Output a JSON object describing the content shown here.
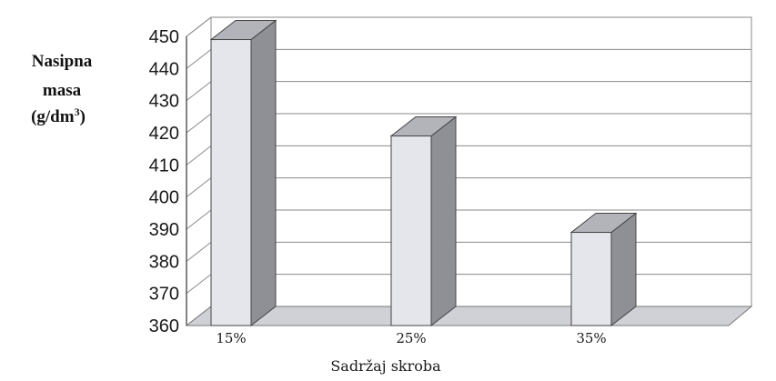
{
  "chart_data": {
    "type": "bar",
    "ylabel_lines": [
      "Nasipna",
      "masa",
      "(g/dm"
    ],
    "ylabel_superscript": "3",
    "ylabel_suffix": ")",
    "xlabel": "Sadržaj skroba",
    "categories": [
      "15%",
      "25%",
      "35%"
    ],
    "values": [
      449,
      419,
      389
    ],
    "ylim": [
      360,
      450
    ],
    "yticks": [
      360,
      370,
      380,
      390,
      400,
      410,
      420,
      430,
      440,
      450
    ],
    "grid": true,
    "three_d": true,
    "colors": {
      "bar_front": "#e4e6ec",
      "bar_side": "#8e9096",
      "bar_top": "#b2b4ba",
      "floor": "#cfd1d6",
      "grid": "#8a8a8a",
      "wall": "#ffffff"
    }
  }
}
